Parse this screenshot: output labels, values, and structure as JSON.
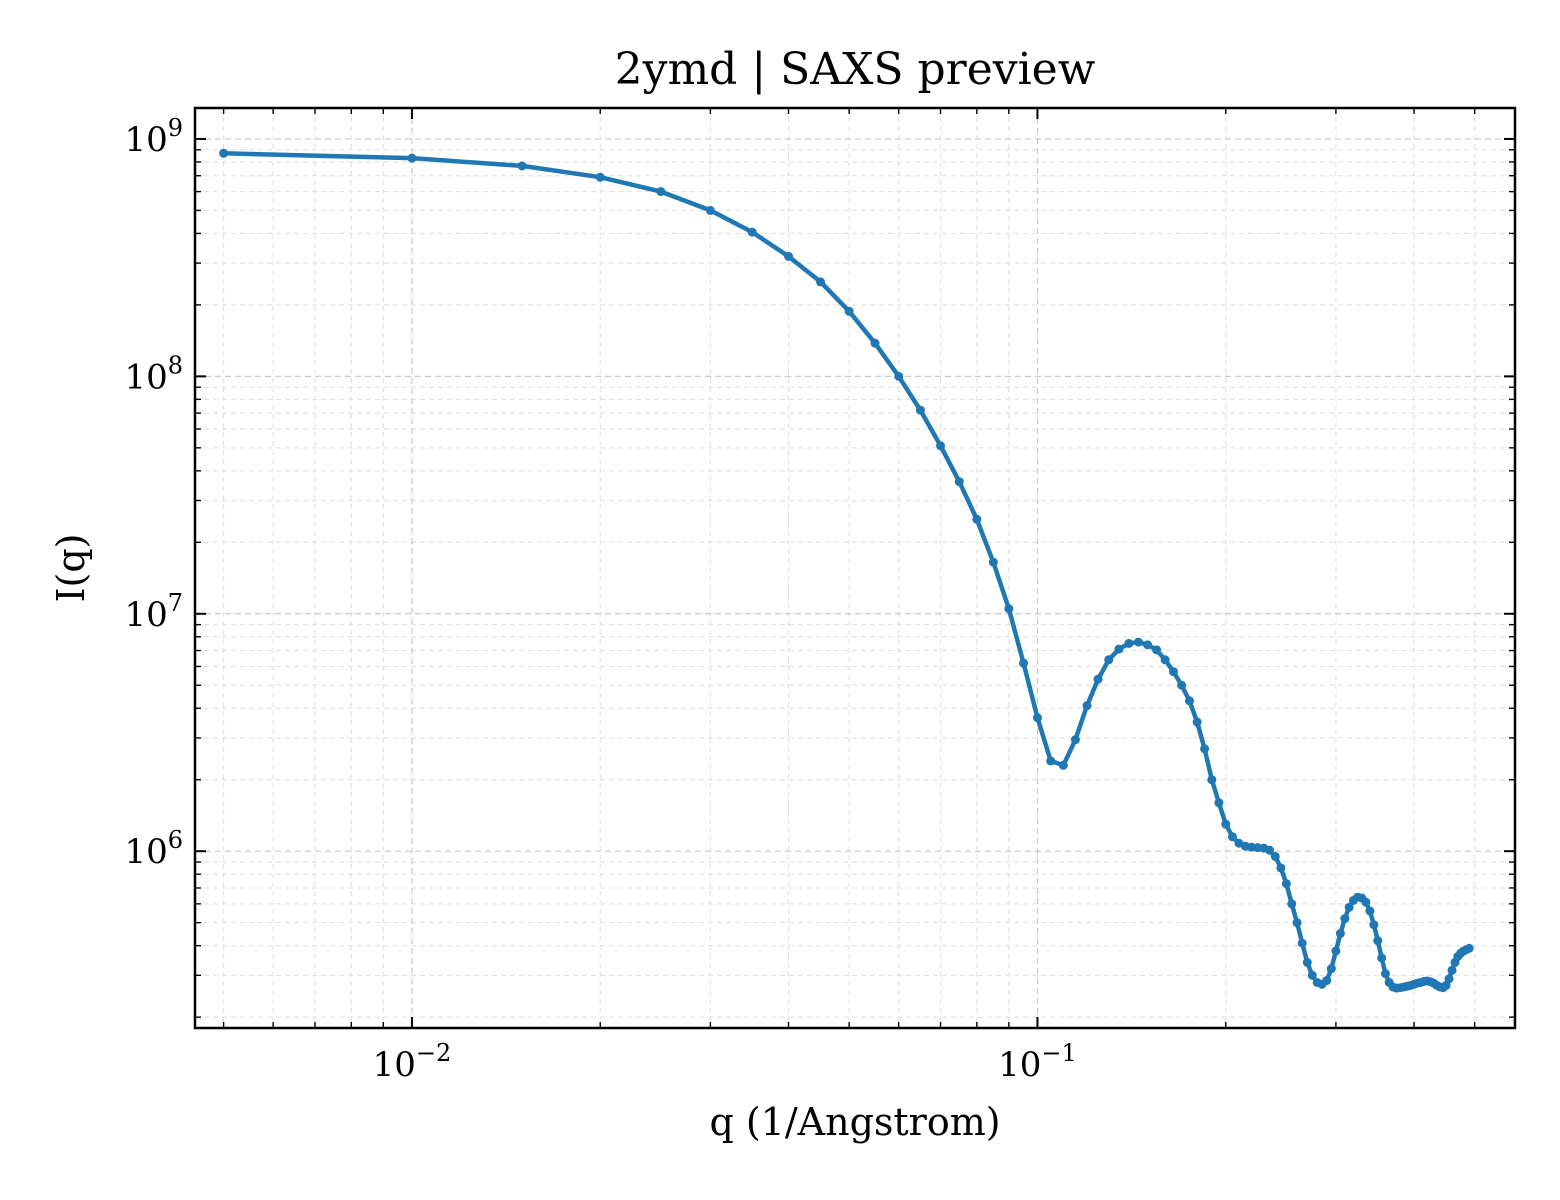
{
  "chart_data": {
    "type": "line",
    "title": "2ymd | SAXS preview",
    "xlabel": "q (1/Angstrom)",
    "ylabel": "I(q)",
    "xscale": "log",
    "yscale": "log",
    "xlim": [
      0.0045,
      0.58
    ],
    "ylim": [
      180000,
      1350000000
    ],
    "grid": true,
    "legend": "none",
    "color": "#1f77b4",
    "x_ticks": [
      {
        "base": "10",
        "exp": "−2",
        "value": 0.01
      },
      {
        "base": "10",
        "exp": "−1",
        "value": 0.1
      }
    ],
    "y_ticks": [
      {
        "base": "10",
        "exp": "6",
        "value": 1000000
      },
      {
        "base": "10",
        "exp": "7",
        "value": 10000000
      },
      {
        "base": "10",
        "exp": "8",
        "value": 100000000
      },
      {
        "base": "10",
        "exp": "9",
        "value": 1000000000
      }
    ],
    "series": [
      {
        "points": [
          [
            0.005,
            870000000
          ],
          [
            0.01,
            830000000
          ],
          [
            0.015,
            770000000
          ],
          [
            0.02,
            690000000
          ],
          [
            0.025,
            600000000
          ],
          [
            0.03,
            500000000
          ],
          [
            0.035,
            405000000
          ],
          [
            0.04,
            320000000
          ],
          [
            0.045,
            250000000
          ],
          [
            0.05,
            188000000
          ],
          [
            0.055,
            138000000
          ],
          [
            0.06,
            100000000
          ],
          [
            0.065,
            72000000
          ],
          [
            0.07,
            51000000
          ],
          [
            0.075,
            36000000
          ],
          [
            0.08,
            25000000
          ],
          [
            0.085,
            16500000
          ],
          [
            0.09,
            10500000
          ],
          [
            0.095,
            6200000
          ],
          [
            0.1,
            3650000
          ],
          [
            0.105,
            2400000
          ],
          [
            0.11,
            2300000
          ],
          [
            0.115,
            2950000
          ],
          [
            0.12,
            4100000
          ],
          [
            0.125,
            5300000
          ],
          [
            0.13,
            6400000
          ],
          [
            0.135,
            7100000
          ],
          [
            0.14,
            7500000
          ],
          [
            0.145,
            7600000
          ],
          [
            0.15,
            7400000
          ],
          [
            0.155,
            7050000
          ],
          [
            0.16,
            6400000
          ],
          [
            0.165,
            5700000
          ],
          [
            0.17,
            5000000
          ],
          [
            0.175,
            4300000
          ],
          [
            0.18,
            3500000
          ],
          [
            0.185,
            2700000
          ],
          [
            0.19,
            2000000
          ],
          [
            0.195,
            1600000
          ],
          [
            0.2,
            1300000
          ],
          [
            0.205,
            1150000
          ],
          [
            0.21,
            1080000
          ],
          [
            0.215,
            1050000
          ],
          [
            0.22,
            1040000
          ],
          [
            0.225,
            1035000
          ],
          [
            0.23,
            1030000
          ],
          [
            0.235,
            1010000
          ],
          [
            0.24,
            950000
          ],
          [
            0.245,
            850000
          ],
          [
            0.25,
            730000
          ],
          [
            0.255,
            600000
          ],
          [
            0.26,
            500000
          ],
          [
            0.265,
            410000
          ],
          [
            0.27,
            340000
          ],
          [
            0.275,
            300000
          ],
          [
            0.28,
            280000
          ],
          [
            0.285,
            275000
          ],
          [
            0.29,
            285000
          ],
          [
            0.295,
            320000
          ],
          [
            0.3,
            380000
          ],
          [
            0.305,
            450000
          ],
          [
            0.31,
            520000
          ],
          [
            0.315,
            580000
          ],
          [
            0.32,
            620000
          ],
          [
            0.325,
            640000
          ],
          [
            0.33,
            635000
          ],
          [
            0.335,
            610000
          ],
          [
            0.34,
            560000
          ],
          [
            0.345,
            490000
          ],
          [
            0.35,
            420000
          ],
          [
            0.355,
            355000
          ],
          [
            0.36,
            305000
          ],
          [
            0.365,
            280000
          ],
          [
            0.37,
            268000
          ],
          [
            0.375,
            265000
          ],
          [
            0.38,
            266000
          ],
          [
            0.385,
            268000
          ],
          [
            0.39,
            270000
          ],
          [
            0.395,
            272000
          ],
          [
            0.4,
            275000
          ],
          [
            0.405,
            278000
          ],
          [
            0.41,
            280000
          ],
          [
            0.415,
            283000
          ],
          [
            0.42,
            284000
          ],
          [
            0.425,
            282000
          ],
          [
            0.43,
            278000
          ],
          [
            0.435,
            272000
          ],
          [
            0.44,
            268000
          ],
          [
            0.445,
            266000
          ],
          [
            0.45,
            272000
          ],
          [
            0.455,
            290000
          ],
          [
            0.46,
            315000
          ],
          [
            0.465,
            340000
          ],
          [
            0.47,
            360000
          ],
          [
            0.475,
            372000
          ],
          [
            0.48,
            380000
          ],
          [
            0.485,
            385000
          ],
          [
            0.49,
            390000
          ]
        ]
      }
    ]
  }
}
